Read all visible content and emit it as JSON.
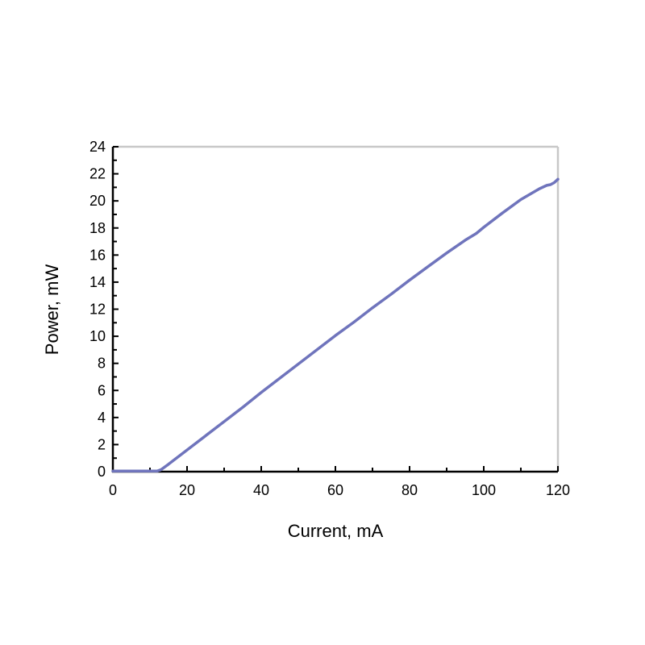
{
  "chart_data": {
    "type": "line",
    "title": "",
    "xlabel": "Current, mA",
    "ylabel": "Power, mW",
    "xlim": [
      0,
      120
    ],
    "ylim": [
      0,
      24
    ],
    "xticks": [
      0,
      20,
      40,
      60,
      80,
      100,
      120
    ],
    "yticks": [
      0,
      2,
      4,
      6,
      8,
      10,
      12,
      14,
      16,
      18,
      20,
      22,
      24
    ],
    "grid": false,
    "line_color": "#6f74bc",
    "series": [
      {
        "x": [
          0,
          5,
          10,
          12,
          13,
          15,
          20,
          25,
          30,
          35,
          40,
          45,
          50,
          55,
          60,
          65,
          70,
          75,
          80,
          85,
          90,
          95,
          98,
          100,
          105,
          110,
          115,
          117,
          118,
          119,
          120
        ],
        "y": [
          0.05,
          0.05,
          0.05,
          0.05,
          0.15,
          0.55,
          1.6,
          2.65,
          3.7,
          4.75,
          5.85,
          6.9,
          7.95,
          9.0,
          10.05,
          11.05,
          12.1,
          13.1,
          14.15,
          15.15,
          16.15,
          17.1,
          17.6,
          18.05,
          19.1,
          20.1,
          20.9,
          21.15,
          21.2,
          21.35,
          21.6
        ]
      }
    ]
  }
}
